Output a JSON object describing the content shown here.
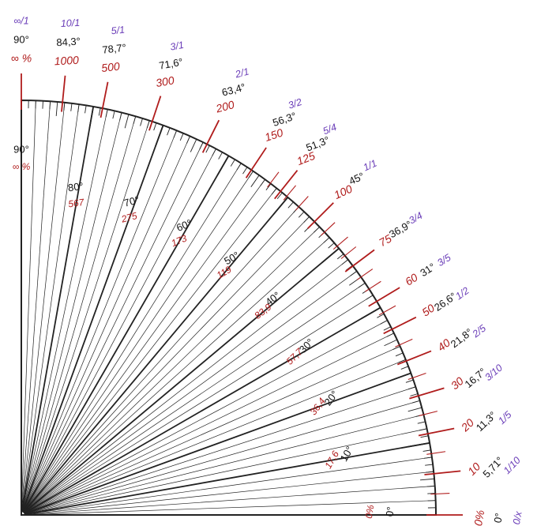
{
  "colors": {
    "degree": "#111111",
    "percent": "#b01c1c",
    "ratio": "#6a3db8",
    "scale": "#222222"
  },
  "outer_labels": [
    {
      "angle": 90,
      "ratio": "∞/1",
      "deg": "90°",
      "pct": "∞ %"
    },
    {
      "angle": 84.3,
      "ratio": "10/1",
      "deg": "84,3°",
      "pct": "1000"
    },
    {
      "angle": 78.7,
      "ratio": "5/1",
      "deg": "78,7°",
      "pct": "500"
    },
    {
      "angle": 71.6,
      "ratio": "3/1",
      "deg": "71,6°",
      "pct": "300"
    },
    {
      "angle": 63.4,
      "ratio": "2/1",
      "deg": "63,4°",
      "pct": "200"
    },
    {
      "angle": 56.3,
      "ratio": "3/2",
      "deg": "56,3°",
      "pct": "150"
    },
    {
      "angle": 51.3,
      "ratio": "5/4",
      "deg": "51,3°",
      "pct": "125"
    },
    {
      "angle": 45,
      "ratio": "1/1",
      "deg": "45°",
      "pct": "100"
    },
    {
      "angle": 36.9,
      "ratio": "3/4",
      "deg": "36,9°",
      "pct": "75"
    },
    {
      "angle": 31,
      "ratio": "3/5",
      "deg": "31°",
      "pct": "60"
    },
    {
      "angle": 26.6,
      "ratio": "1/2",
      "deg": "26,6°",
      "pct": "50"
    },
    {
      "angle": 21.8,
      "ratio": "2/5",
      "deg": "21,8°",
      "pct": "40"
    },
    {
      "angle": 16.7,
      "ratio": "3/10",
      "deg": "16,7°",
      "pct": "30"
    },
    {
      "angle": 11.3,
      "ratio": "1/5",
      "deg": "11,3°",
      "pct": "20"
    },
    {
      "angle": 5.71,
      "ratio": "1/10",
      "deg": "5,71°",
      "pct": "10"
    },
    {
      "angle": 0,
      "ratio": "0/x",
      "deg": "0°",
      "pct": "0%"
    }
  ],
  "inner_labels": [
    {
      "angle": 90,
      "deg": "90°",
      "pct": "∞ %"
    },
    {
      "angle": 80,
      "deg": "80°",
      "pct": "567"
    },
    {
      "angle": 70,
      "deg": "70°",
      "pct": "275"
    },
    {
      "angle": 60,
      "deg": "60°",
      "pct": "173"
    },
    {
      "angle": 50,
      "deg": "50°",
      "pct": "119"
    },
    {
      "angle": 40,
      "deg": "40°",
      "pct": "83,9"
    },
    {
      "angle": 30,
      "deg": "30°",
      "pct": "57,7"
    },
    {
      "angle": 20,
      "deg": "20°",
      "pct": "36,4"
    },
    {
      "angle": 10,
      "deg": "10°",
      "pct": "17,6"
    },
    {
      "angle": 0,
      "deg": "0°",
      "pct": "0%"
    }
  ],
  "scale": {
    "degree_range": [
      0,
      90
    ],
    "minor_tick_step_deg": 1,
    "ray_step_deg": 2,
    "red_ticks_deg": [
      90,
      84.3,
      78.7,
      71.6,
      63.4,
      56.3,
      51.3,
      45,
      36.9,
      31,
      26.6,
      21.8,
      16.7,
      11.3,
      5.71,
      0
    ],
    "red_minor_ticks_deg": [
      53.1,
      50.2,
      48.0,
      43.0,
      40.4,
      38.7,
      35.0,
      33.0,
      29.2,
      24.2,
      19.3,
      14.0,
      8.5,
      2.9
    ]
  }
}
